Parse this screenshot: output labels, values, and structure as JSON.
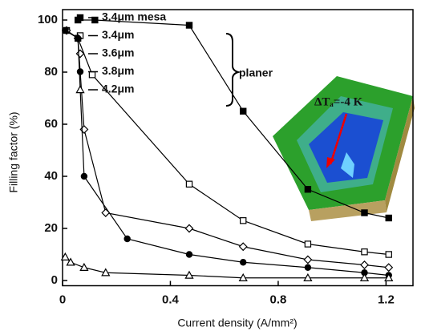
{
  "chart_data": {
    "type": "line",
    "x_label": "Current density (A/mm²)",
    "y_label": "Filling factor (%)",
    "xlim": [
      0,
      1.3
    ],
    "xticks": [
      0,
      0.4,
      0.8,
      1.2
    ],
    "ylim": [
      -2,
      104
    ],
    "yticks": [
      0,
      20,
      40,
      60,
      80,
      100
    ],
    "color": "#000000",
    "series": [
      {
        "name": "3.4μm mesa",
        "marker": "square",
        "x": [
          0.057,
          0.12,
          0.47,
          0.67,
          0.91,
          1.12,
          1.21
        ],
        "values": [
          100,
          100,
          98,
          65,
          35,
          26,
          24
        ]
      },
      {
        "name": "3.4μm",
        "marker": "open-square",
        "x": [
          0.015,
          0.057,
          0.11,
          0.47,
          0.67,
          0.91,
          1.12,
          1.21
        ],
        "values": [
          96,
          93,
          79,
          37,
          23,
          14,
          11,
          10
        ]
      },
      {
        "name": "3.6μm",
        "marker": "open-diamond",
        "x": [
          0.015,
          0.057,
          0.08,
          0.16,
          0.47,
          0.67,
          0.91,
          1.12,
          1.21
        ],
        "values": [
          96,
          93,
          58,
          26,
          20,
          13,
          8,
          6,
          5
        ]
      },
      {
        "name": "3.8μm",
        "marker": "circle",
        "x": [
          0.01,
          0.057,
          0.08,
          0.24,
          0.47,
          0.67,
          0.91,
          1.12,
          1.21
        ],
        "values": [
          96,
          93,
          40,
          16,
          10,
          7,
          5,
          3,
          2
        ]
      },
      {
        "name": "4.2μm",
        "marker": "open-triangle",
        "x": [
          0.01,
          0.03,
          0.08,
          0.16,
          0.47,
          0.67,
          0.91,
          1.12,
          1.21
        ],
        "values": [
          9,
          7,
          5,
          3,
          2,
          1,
          1,
          1,
          1
        ]
      }
    ],
    "group_label": "planer",
    "inset_annotation": "ΔTₐ=-4 K"
  }
}
